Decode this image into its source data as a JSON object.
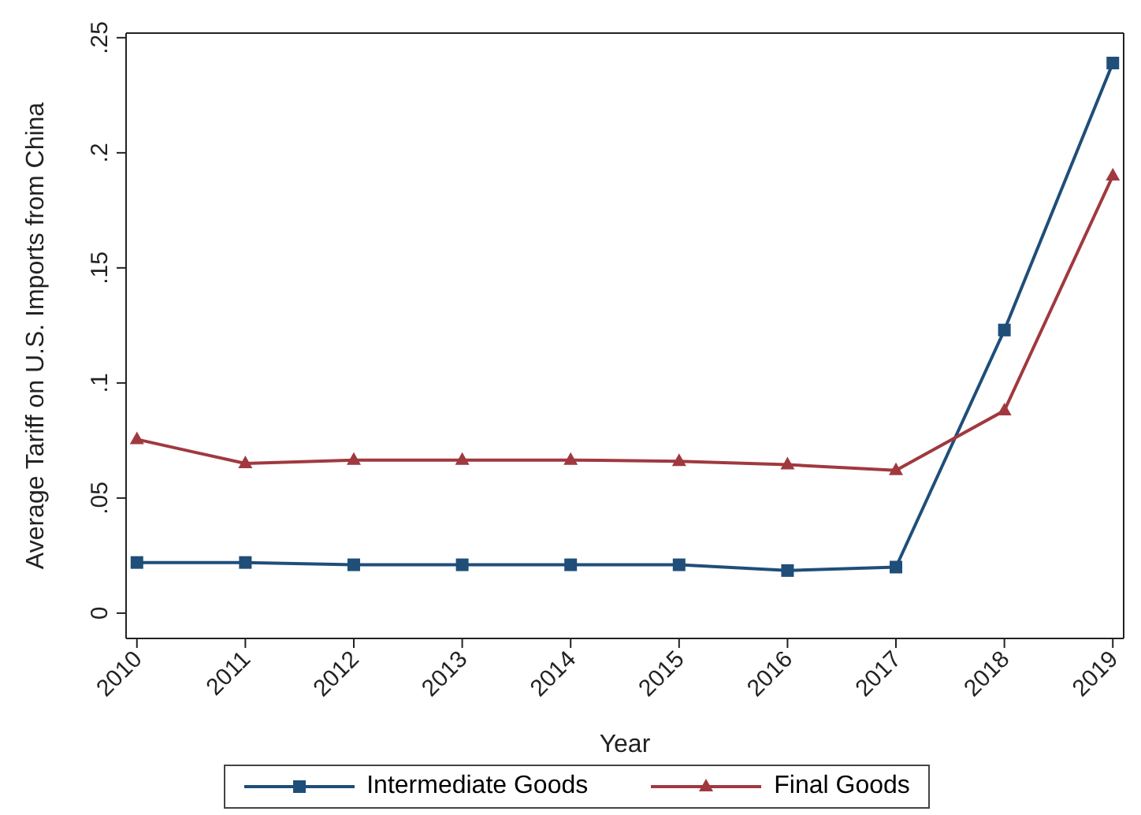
{
  "chart_data": {
    "type": "line",
    "xlabel": "Year",
    "ylabel": "Average Tariff on U.S. Imports from China",
    "categories": [
      "2010",
      "2011",
      "2012",
      "2013",
      "2014",
      "2015",
      "2016",
      "2017",
      "2018",
      "2019"
    ],
    "series": [
      {
        "name": "Intermediate Goods",
        "color": "#1f4e79",
        "marker": "square",
        "values": [
          0.022,
          0.022,
          0.021,
          0.021,
          0.021,
          0.021,
          0.0185,
          0.02,
          0.123,
          0.239
        ]
      },
      {
        "name": "Final Goods",
        "color": "#a0393f",
        "marker": "triangle",
        "values": [
          0.0755,
          0.065,
          0.0665,
          0.0665,
          0.0665,
          0.066,
          0.0645,
          0.062,
          0.088,
          0.19
        ]
      }
    ],
    "ylim": [
      -0.011,
      0.252
    ],
    "yticks": [
      {
        "value": 0,
        "label": "0"
      },
      {
        "value": 0.05,
        "label": ".05"
      },
      {
        "value": 0.1,
        "label": ".1"
      },
      {
        "value": 0.15,
        "label": ".15"
      },
      {
        "value": 0.2,
        "label": ".2"
      },
      {
        "value": 0.25,
        "label": ".25"
      }
    ],
    "grid": false,
    "legend": "bottom",
    "line_style": "solid"
  }
}
